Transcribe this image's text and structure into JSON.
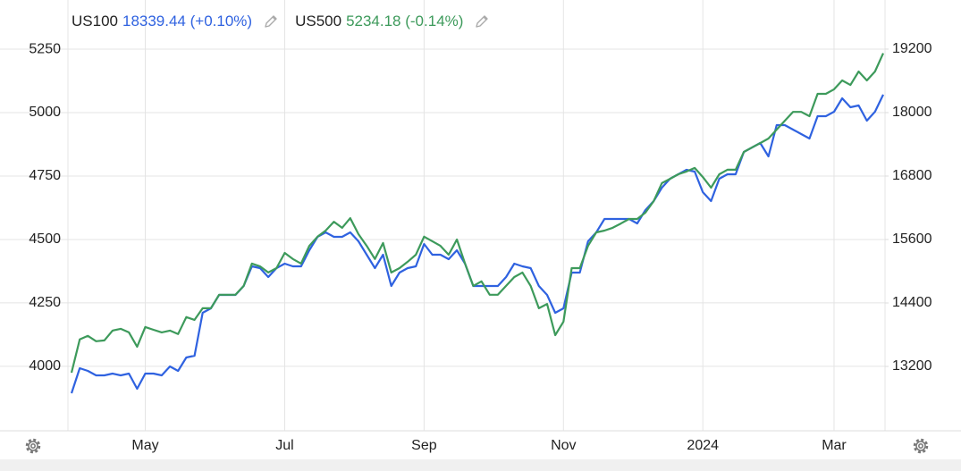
{
  "chart_data": {
    "type": "line",
    "categories": [
      null,
      null,
      null,
      null,
      null,
      null,
      null,
      null,
      null,
      "May",
      null,
      null,
      null,
      null,
      null,
      null,
      null,
      null,
      null,
      null,
      null,
      null,
      null,
      null,
      null,
      null,
      "Jul",
      null,
      null,
      null,
      null,
      null,
      null,
      null,
      null,
      null,
      null,
      null,
      null,
      null,
      null,
      null,
      null,
      "Sep",
      null,
      null,
      null,
      null,
      null,
      null,
      null,
      null,
      null,
      null,
      null,
      null,
      null,
      null,
      null,
      null,
      "Nov",
      null,
      null,
      null,
      null,
      null,
      null,
      null,
      null,
      null,
      null,
      null,
      null,
      null,
      null,
      null,
      null,
      "2024",
      null,
      null,
      null,
      null,
      null,
      null,
      null,
      null,
      null,
      null,
      null,
      null,
      null,
      null,
      null,
      "Mar",
      null,
      null,
      null,
      null,
      null,
      null
    ],
    "series": [
      {
        "name": "US100",
        "last_label": "18339.44 (+0.10%)",
        "color": "#2f62e0",
        "axis": "y2",
        "values": [
          12693,
          13166,
          13116,
          13031,
          13031,
          13065,
          13031,
          13065,
          12778,
          13065,
          13065,
          13031,
          13200,
          13116,
          13369,
          13403,
          14214,
          14299,
          14552,
          14552,
          14552,
          14721,
          15093,
          15059,
          14890,
          15059,
          15144,
          15093,
          15093,
          15397,
          15651,
          15735,
          15651,
          15651,
          15735,
          15566,
          15313,
          15059,
          15313,
          14721,
          14975,
          15059,
          15093,
          15515,
          15313,
          15313,
          15228,
          15397,
          15144,
          14721,
          14721,
          14721,
          14721,
          14890,
          15144,
          15093,
          15059,
          14721,
          14552,
          14214,
          14299,
          14975,
          14975,
          15566,
          15735,
          15989,
          15989,
          15989,
          15989,
          15904,
          16158,
          16327,
          16580,
          16749,
          16834,
          16918,
          16884,
          16496,
          16327,
          16749,
          16834,
          16834,
          17256,
          17341,
          17425,
          17172,
          17763,
          17763,
          17679,
          17594,
          17510,
          17932,
          17932,
          18017,
          18270,
          18101,
          18135,
          17848,
          18017,
          18339
        ]
      },
      {
        "name": "US500",
        "last_label": "5234.18 (-0.14%)",
        "color": "#3d9a5b",
        "axis": "y",
        "values": [
          3975,
          4106,
          4120,
          4099,
          4102,
          4141,
          4148,
          4134,
          4077,
          4155,
          4144,
          4134,
          4141,
          4127,
          4194,
          4183,
          4229,
          4229,
          4282,
          4282,
          4282,
          4317,
          4405,
          4394,
          4370,
          4387,
          4447,
          4423,
          4405,
          4475,
          4511,
          4535,
          4570,
          4546,
          4584,
          4521,
          4475,
          4423,
          4486,
          4370,
          4387,
          4412,
          4440,
          4511,
          4493,
          4475,
          4440,
          4500,
          4405,
          4317,
          4335,
          4282,
          4282,
          4317,
          4352,
          4370,
          4317,
          4229,
          4246,
          4123,
          4176,
          4387,
          4387,
          4475,
          4528,
          4535,
          4546,
          4563,
          4581,
          4581,
          4606,
          4651,
          4722,
          4739,
          4757,
          4768,
          4782,
          4746,
          4704,
          4757,
          4775,
          4775,
          4845,
          4863,
          4880,
          4898,
          4933,
          4968,
          5003,
          5003,
          4986,
          5074,
          5074,
          5092,
          5127,
          5109,
          5162,
          5127,
          5162,
          5234
        ]
      }
    ],
    "ylim": [
      3746,
      5303
    ],
    "yticks": [
      4000,
      4250,
      4500,
      4750,
      5000,
      5250
    ],
    "y2lim": [
      11983,
      19453
    ],
    "y2ticks": [
      13200,
      14400,
      15600,
      16800,
      18000,
      19200
    ],
    "grid": true
  }
}
